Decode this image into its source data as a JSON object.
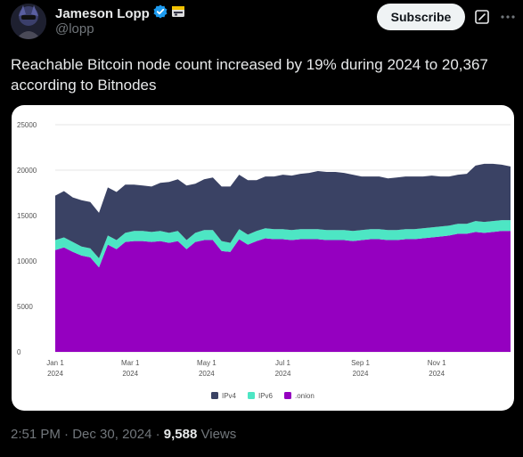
{
  "author": {
    "name": "Jameson Lopp",
    "handle": "@lopp"
  },
  "actions": {
    "subscribe_label": "Subscribe"
  },
  "tweet": {
    "text": "Reachable Bitcoin node count increased by 19% during 2024 to 20,367 according to Bitnodes"
  },
  "meta": {
    "time": "2:51 PM",
    "separator": " · ",
    "date": "Dec 30, 2024",
    "views_count": "9,588",
    "views_label": "Views"
  },
  "colors": {
    "ipv4": "#3a4264",
    "ipv6": "#4de6c4",
    "onion": "#9500c0",
    "verified": "#1d9bf0"
  },
  "chart_data": {
    "type": "area",
    "stacked": true,
    "xlim": [
      0,
      364
    ],
    "ylim": [
      0,
      25000
    ],
    "yticks": [
      "0",
      "5000",
      "10000",
      "15000",
      "20000",
      "25000"
    ],
    "xticks": [
      {
        "day": 0,
        "label": "Jan 1",
        "year": "2024"
      },
      {
        "day": 60,
        "label": "Mar 1",
        "year": "2024"
      },
      {
        "day": 121,
        "label": "May 1",
        "year": "2024"
      },
      {
        "day": 182,
        "label": "Jul 1",
        "year": "2024"
      },
      {
        "day": 244,
        "label": "Sep 1",
        "year": "2024"
      },
      {
        "day": 305,
        "label": "Nov 1",
        "year": "2024"
      }
    ],
    "grid": true,
    "legend_position": "bottom-center",
    "legend": [
      {
        "key": "ipv4",
        "label": "IPv4"
      },
      {
        "key": "ipv6",
        "label": "IPv6"
      },
      {
        "key": "onion",
        "label": ".onion"
      }
    ],
    "x": [
      0,
      7,
      14,
      21,
      28,
      35,
      42,
      49,
      56,
      63,
      70,
      77,
      84,
      91,
      98,
      105,
      112,
      119,
      126,
      133,
      140,
      147,
      154,
      161,
      168,
      175,
      182,
      189,
      196,
      203,
      210,
      217,
      224,
      231,
      238,
      245,
      252,
      259,
      266,
      273,
      280,
      287,
      294,
      301,
      308,
      315,
      322,
      329,
      336,
      343,
      350,
      357,
      364
    ],
    "series": [
      {
        "key": "onion",
        "values": [
          11200,
          11500,
          11000,
          10600,
          10400,
          9300,
          11800,
          11300,
          12100,
          12200,
          12200,
          12100,
          12200,
          12000,
          12200,
          11300,
          12100,
          12300,
          12300,
          11100,
          11000,
          12400,
          11800,
          12200,
          12500,
          12400,
          12400,
          12300,
          12400,
          12400,
          12400,
          12300,
          12300,
          12300,
          12200,
          12300,
          12400,
          12400,
          12300,
          12300,
          12400,
          12400,
          12500,
          12600,
          12700,
          12800,
          13000,
          13000,
          13200,
          13100,
          13200,
          13300,
          13300
        ]
      },
      {
        "key": "ipv6",
        "values": [
          1100,
          1100,
          1100,
          1000,
          1000,
          1000,
          1000,
          1000,
          1000,
          1100,
          1100,
          1100,
          1100,
          1100,
          1100,
          1000,
          1000,
          1100,
          1100,
          1100,
          1000,
          1100,
          1100,
          1100,
          1100,
          1100,
          1100,
          1100,
          1100,
          1100,
          1100,
          1100,
          1100,
          1100,
          1100,
          1100,
          1100,
          1100,
          1100,
          1100,
          1100,
          1100,
          1100,
          1100,
          1100,
          1100,
          1100,
          1100,
          1200,
          1200,
          1200,
          1200,
          1200
        ]
      },
      {
        "key": "ipv4",
        "values": [
          4900,
          5100,
          4900,
          5100,
          5100,
          5000,
          5300,
          5300,
          5300,
          5100,
          5000,
          5000,
          5300,
          5600,
          5700,
          6000,
          5400,
          5600,
          5800,
          6000,
          6200,
          6000,
          6000,
          5600,
          5700,
          5800,
          6000,
          6000,
          6100,
          6200,
          6400,
          6400,
          6400,
          6300,
          6200,
          5900,
          5800,
          5800,
          5700,
          5800,
          5800,
          5800,
          5700,
          5700,
          5500,
          5400,
          5400,
          5500,
          6100,
          6400,
          6300,
          6100,
          5900
        ]
      }
    ]
  }
}
